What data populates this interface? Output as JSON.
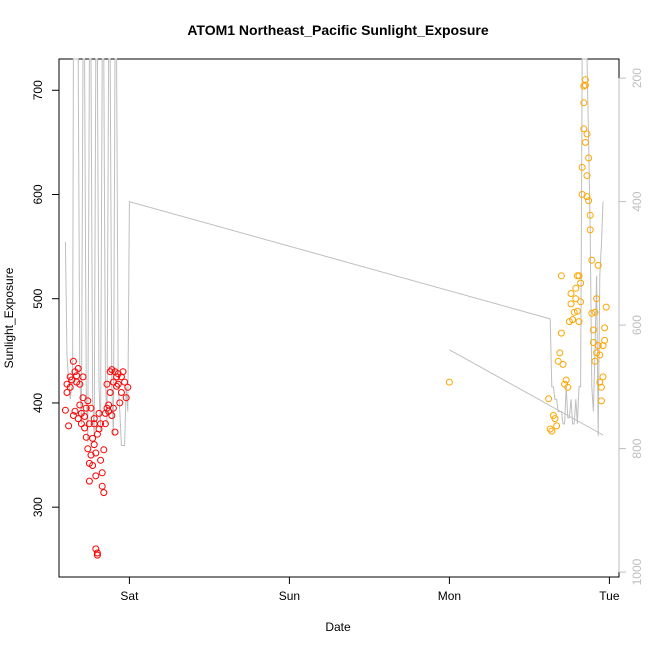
{
  "chart_data": {
    "type": "scatter",
    "title": "ATOM1 Northeast_Pacific Sunlight_Exposure",
    "xlabel": "Date",
    "ylabel": "Sunlight_Exposure",
    "x_ticks": [
      {
        "label": "Sat",
        "value": 1.0
      },
      {
        "label": "Sun",
        "value": 2.0
      },
      {
        "label": "Mon",
        "value": 3.0
      },
      {
        "label": "Tue",
        "value": 4.0
      }
    ],
    "xlim": [
      0.56,
      4.06
    ],
    "ylim": [
      233,
      730
    ],
    "y_ticks": [
      300,
      400,
      500,
      600,
      700
    ],
    "y2": {
      "ticks": [
        200,
        400,
        600,
        800,
        1000
      ],
      "ylim": [
        1008,
        169
      ],
      "color": "#bebebe",
      "direction": "reversed"
    },
    "series": [
      {
        "color": "#ff0000",
        "marker": "open-circle",
        "points": [
          [
            0.6,
            393
          ],
          [
            0.61,
            410
          ],
          [
            0.61,
            418
          ],
          [
            0.62,
            378
          ],
          [
            0.63,
            415
          ],
          [
            0.63,
            425
          ],
          [
            0.64,
            422
          ],
          [
            0.65,
            440
          ],
          [
            0.65,
            388
          ],
          [
            0.66,
            430
          ],
          [
            0.66,
            392
          ],
          [
            0.67,
            420
          ],
          [
            0.67,
            426
          ],
          [
            0.68,
            433
          ],
          [
            0.68,
            385
          ],
          [
            0.69,
            398
          ],
          [
            0.69,
            418
          ],
          [
            0.7,
            390
          ],
          [
            0.7,
            380
          ],
          [
            0.71,
            425
          ],
          [
            0.71,
            405
          ],
          [
            0.72,
            376
          ],
          [
            0.72,
            387
          ],
          [
            0.73,
            367
          ],
          [
            0.73,
            395
          ],
          [
            0.74,
            356
          ],
          [
            0.74,
            402
          ],
          [
            0.75,
            342
          ],
          [
            0.75,
            325
          ],
          [
            0.75,
            380
          ],
          [
            0.76,
            350
          ],
          [
            0.76,
            395
          ],
          [
            0.77,
            366
          ],
          [
            0.77,
            340
          ],
          [
            0.78,
            360
          ],
          [
            0.78,
            380
          ],
          [
            0.78,
            385
          ],
          [
            0.79,
            352
          ],
          [
            0.79,
            330
          ],
          [
            0.79,
            260
          ],
          [
            0.8,
            256
          ],
          [
            0.8,
            254
          ],
          [
            0.8,
            370
          ],
          [
            0.81,
            375
          ],
          [
            0.81,
            390
          ],
          [
            0.82,
            380
          ],
          [
            0.82,
            345
          ],
          [
            0.83,
            333
          ],
          [
            0.83,
            320
          ],
          [
            0.84,
            314
          ],
          [
            0.84,
            355
          ],
          [
            0.85,
            380
          ],
          [
            0.85,
            390
          ],
          [
            0.86,
            395
          ],
          [
            0.86,
            418
          ],
          [
            0.87,
            392
          ],
          [
            0.87,
            398
          ],
          [
            0.88,
            410
          ],
          [
            0.88,
            430
          ],
          [
            0.89,
            432
          ],
          [
            0.89,
            388
          ],
          [
            0.9,
            395
          ],
          [
            0.9,
            420
          ],
          [
            0.91,
            372
          ],
          [
            0.91,
            430
          ],
          [
            0.92,
            425
          ],
          [
            0.92,
            416
          ],
          [
            0.93,
            428
          ],
          [
            0.93,
            418
          ],
          [
            0.94,
            400
          ],
          [
            0.95,
            410
          ],
          [
            0.95,
            425
          ],
          [
            0.96,
            430
          ],
          [
            0.97,
            420
          ],
          [
            0.98,
            405
          ],
          [
            0.99,
            415
          ]
        ]
      },
      {
        "color": "#ffa500",
        "marker": "open-circle",
        "points": [
          [
            3.0,
            420
          ],
          [
            3.62,
            404
          ],
          [
            3.63,
            375
          ],
          [
            3.64,
            373
          ],
          [
            3.65,
            388
          ],
          [
            3.66,
            385
          ],
          [
            3.67,
            378
          ],
          [
            3.68,
            440
          ],
          [
            3.69,
            448
          ],
          [
            3.7,
            467
          ],
          [
            3.7,
            522
          ],
          [
            3.71,
            437
          ],
          [
            3.72,
            418
          ],
          [
            3.73,
            422
          ],
          [
            3.74,
            415
          ],
          [
            3.75,
            478
          ],
          [
            3.76,
            495
          ],
          [
            3.76,
            505
          ],
          [
            3.77,
            480
          ],
          [
            3.78,
            487
          ],
          [
            3.79,
            500
          ],
          [
            3.79,
            510
          ],
          [
            3.8,
            522
          ],
          [
            3.8,
            488
          ],
          [
            3.81,
            478
          ],
          [
            3.81,
            522
          ],
          [
            3.82,
            497
          ],
          [
            3.82,
            515
          ],
          [
            3.83,
            600
          ],
          [
            3.83,
            626
          ],
          [
            3.84,
            663
          ],
          [
            3.84,
            688
          ],
          [
            3.84,
            704
          ],
          [
            3.85,
            705
          ],
          [
            3.85,
            710
          ],
          [
            3.85,
            650
          ],
          [
            3.86,
            658
          ],
          [
            3.86,
            618
          ],
          [
            3.86,
            598
          ],
          [
            3.87,
            594
          ],
          [
            3.87,
            635
          ],
          [
            3.88,
            580
          ],
          [
            3.88,
            566
          ],
          [
            3.89,
            537
          ],
          [
            3.89,
            486
          ],
          [
            3.9,
            470
          ],
          [
            3.9,
            458
          ],
          [
            3.91,
            440
          ],
          [
            3.91,
            487
          ],
          [
            3.92,
            500
          ],
          [
            3.92,
            448
          ],
          [
            3.93,
            455
          ],
          [
            3.93,
            532
          ],
          [
            3.94,
            420
          ],
          [
            3.94,
            446
          ],
          [
            3.95,
            415
          ],
          [
            3.95,
            402
          ],
          [
            3.96,
            425
          ],
          [
            3.96,
            455
          ],
          [
            3.97,
            460
          ],
          [
            3.97,
            472
          ],
          [
            3.98,
            492
          ]
        ]
      }
    ],
    "line_series": {
      "color": "#bebebe",
      "axis": "right",
      "segments": [
        [
          [
            0.6,
            465
          ],
          [
            0.61,
            650
          ],
          [
            0.62,
            690
          ],
          [
            0.63,
            720
          ],
          [
            0.64,
            700
          ],
          [
            0.645,
            680
          ],
          [
            0.65,
            169
          ],
          [
            0.66,
            169
          ],
          [
            0.68,
            169
          ],
          [
            0.69,
            680
          ],
          [
            0.7,
            760
          ],
          [
            0.71,
            169
          ],
          [
            0.72,
            169
          ],
          [
            0.73,
            700
          ],
          [
            0.74,
            790
          ],
          [
            0.75,
            169
          ],
          [
            0.76,
            169
          ],
          [
            0.77,
            720
          ],
          [
            0.78,
            780
          ],
          [
            0.79,
            169
          ],
          [
            0.8,
            169
          ],
          [
            0.81,
            700
          ],
          [
            0.82,
            770
          ],
          [
            0.83,
            169
          ],
          [
            0.84,
            169
          ],
          [
            0.85,
            690
          ],
          [
            0.86,
            760
          ],
          [
            0.87,
            169
          ],
          [
            0.88,
            169
          ],
          [
            0.89,
            700
          ],
          [
            0.9,
            780
          ],
          [
            0.91,
            169
          ],
          [
            0.92,
            169
          ],
          [
            0.93,
            700
          ],
          [
            0.94,
            740
          ],
          [
            0.95,
            795
          ],
          [
            0.97,
            795
          ],
          [
            0.98,
            700
          ],
          [
            0.99,
            740
          ],
          [
            1.0,
            400
          ],
          [
            3.63,
            590
          ],
          [
            3.64,
            700
          ],
          [
            3.65,
            700
          ],
          [
            3.66,
            720
          ],
          [
            3.67,
            720
          ],
          [
            3.68,
            740
          ],
          [
            3.7,
            740
          ],
          [
            3.71,
            760
          ],
          [
            3.72,
            760
          ],
          [
            3.73,
            700
          ],
          [
            3.74,
            750
          ],
          [
            3.75,
            750
          ],
          [
            3.76,
            720
          ],
          [
            3.77,
            760
          ],
          [
            3.78,
            760
          ],
          [
            3.79,
            720
          ],
          [
            3.8,
            760
          ],
          [
            3.81,
            700
          ],
          [
            3.82,
            700
          ],
          [
            3.83,
            169
          ],
          [
            3.84,
            169
          ],
          [
            3.85,
            169
          ],
          [
            3.86,
            169
          ],
          [
            3.87,
            300
          ],
          [
            3.88,
            450
          ],
          [
            3.89,
            700
          ],
          [
            3.9,
            740
          ],
          [
            3.91,
            640
          ],
          [
            3.92,
            520
          ],
          [
            3.93,
            780
          ],
          [
            3.94,
            520
          ],
          [
            3.95,
            470
          ],
          [
            3.96,
            400
          ]
        ],
        [
          [
            3.0,
            640
          ],
          [
            3.96,
            778
          ]
        ]
      ]
    }
  }
}
